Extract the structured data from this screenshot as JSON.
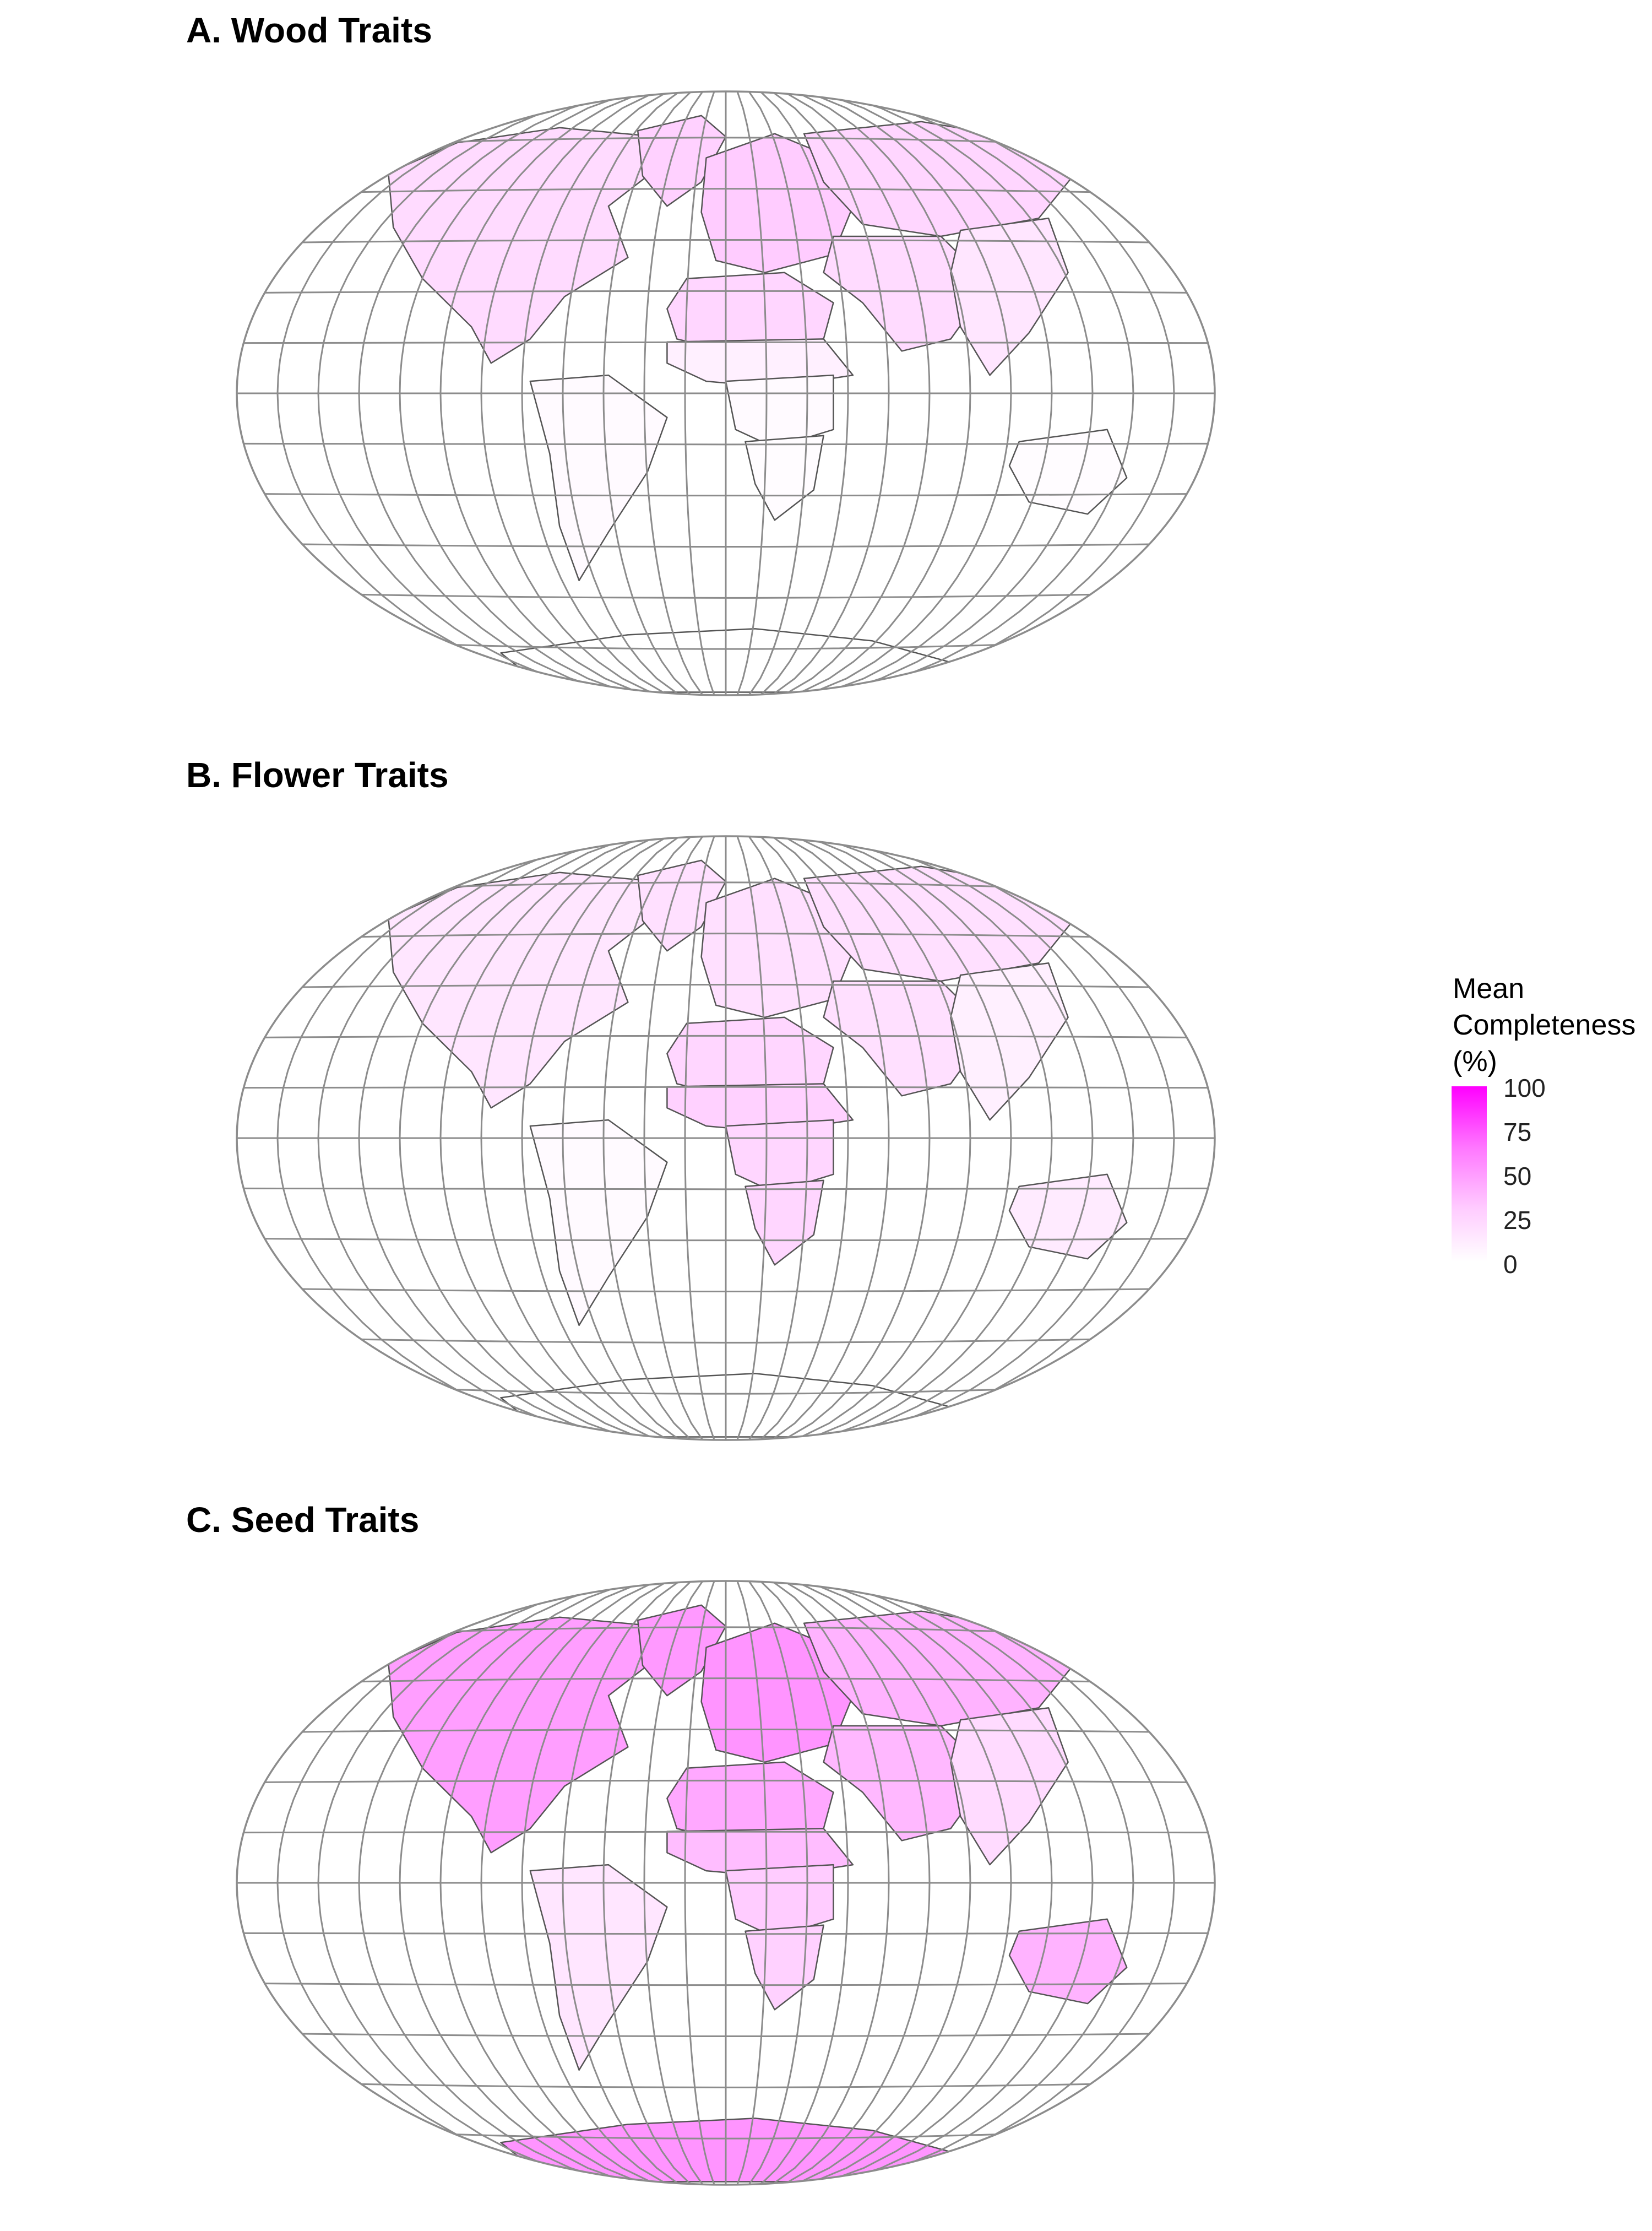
{
  "figure": {
    "panels": [
      {
        "id": "wood",
        "title": "A. Wood Traits"
      },
      {
        "id": "flower",
        "title": "B. Flower Traits"
      },
      {
        "id": "seed",
        "title": "C. Seed Traits"
      }
    ],
    "legend": {
      "title_lines": [
        "Mean",
        "Completeness",
        "(%)"
      ],
      "ticks": [
        "100",
        "75",
        "50",
        "25",
        "0"
      ],
      "range": [
        0,
        100
      ],
      "low_color": "#ffffff",
      "high_color": "#ff00ff"
    },
    "projection": "Winkel tripel",
    "graticule": true,
    "regions": {
      "wood": {
        "north_america": 14,
        "greenland": 18,
        "europe": 20,
        "russia": 16,
        "asia_west": 14,
        "asia_east": 10,
        "north_africa": 16,
        "sahel": 6,
        "central_africa": 2,
        "southern_africa": 1,
        "south_america": 2,
        "australia": 1,
        "antarctica": 0
      },
      "flower": {
        "north_america": 10,
        "greenland": 12,
        "europe": 12,
        "russia": 12,
        "asia_west": 12,
        "asia_east": 6,
        "north_africa": 16,
        "sahel": 18,
        "central_africa": 16,
        "southern_africa": 16,
        "south_america": 2,
        "australia": 8,
        "antarctica": 0
      },
      "seed": {
        "north_america": 38,
        "greenland": 40,
        "europe": 42,
        "russia": 30,
        "asia_west": 28,
        "asia_east": 14,
        "north_africa": 34,
        "sahel": 26,
        "central_africa": 20,
        "southern_africa": 18,
        "south_america": 10,
        "australia": 30,
        "antarctica": 42
      }
    }
  }
}
